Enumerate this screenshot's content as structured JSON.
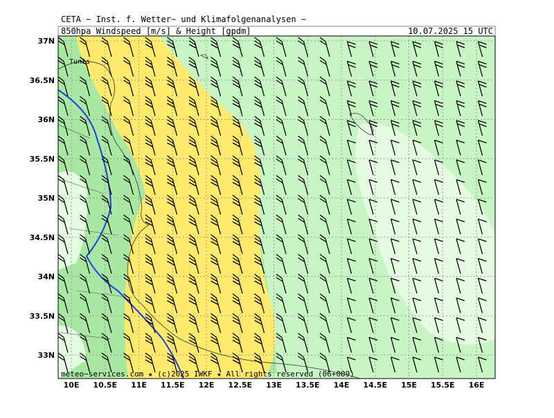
{
  "header": {
    "institute": "CETA − Inst. f. Wetter− und Klimafolgenanalysen −",
    "product": "850hpa_Windspeed_[m/s]_&_Height_[gpdm]",
    "valid_time": "10.07.2025 15 UTC"
  },
  "map": {
    "place_labels": [
      "Tunis"
    ],
    "lat_labels": [
      "37N",
      "36.5N",
      "36N",
      "35.5N",
      "35N",
      "34.5N",
      "34N",
      "33.5N",
      "33N"
    ],
    "lon_labels": [
      "10E",
      "10.5E",
      "11E",
      "11.5E",
      "12E",
      "12.5E",
      "13E",
      "13.5E",
      "14E",
      "14.5E",
      "15E",
      "15.5E",
      "16E"
    ]
  },
  "footer": {
    "credit": "meteo−services.com ★ (c)2025 IWKF ★ All rights reserved (06+009)"
  }
}
